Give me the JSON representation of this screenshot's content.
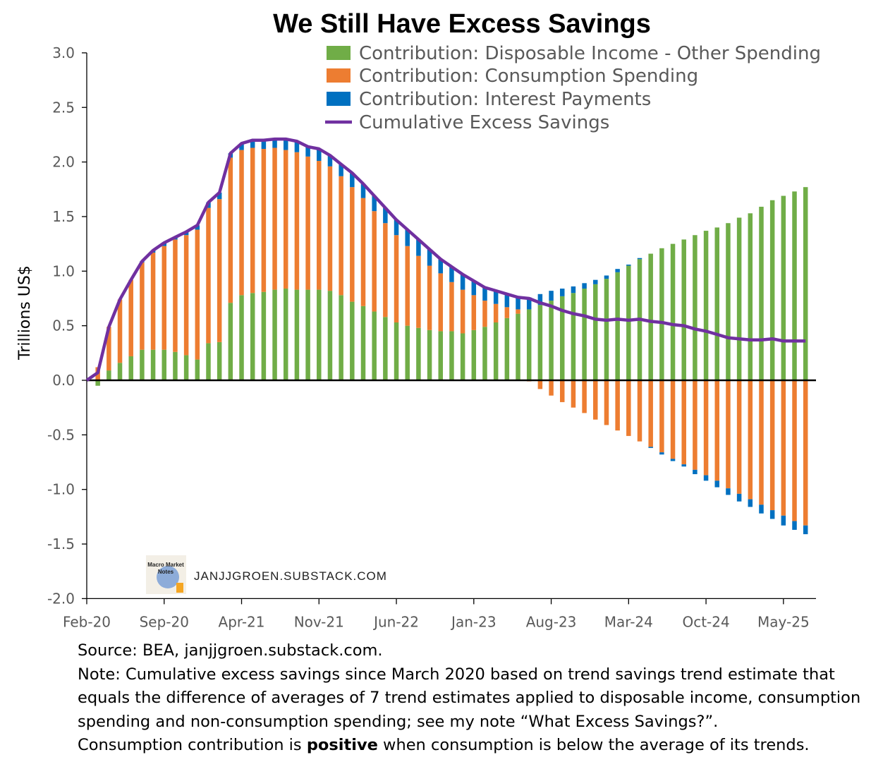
{
  "chart_data": {
    "type": "bar",
    "title": "We Still Have Excess Savings",
    "ylabel": "Trillions US$",
    "xlabel": "",
    "ylim": [
      -2.0,
      3.0
    ],
    "yticks": [
      "3.0",
      "2.5",
      "2.0",
      "1.5",
      "1.0",
      "0.5",
      "0.0",
      "-0.5",
      "-1.0",
      "-1.5",
      "-2.0"
    ],
    "ytick_values": [
      3.0,
      2.5,
      2.0,
      1.5,
      1.0,
      0.5,
      0.0,
      -0.5,
      -1.0,
      -1.5,
      -2.0
    ],
    "xticks": [
      "Feb-20",
      "Sep-20",
      "Apr-21",
      "Nov-21",
      "Jun-22",
      "Jan-23",
      "Aug-23",
      "Mar-24",
      "Oct-24",
      "May-25"
    ],
    "xtick_month_index": [
      0,
      7,
      14,
      21,
      28,
      35,
      42,
      49,
      56,
      63
    ],
    "grid": false,
    "stacked": true,
    "legend_position": "top-right",
    "bar_start": "Mar-20",
    "bar_end": "Jul-25",
    "series": [
      {
        "name": "Contribution: Disposable Income - Other Spending",
        "kind": "bar",
        "color": "#70AD47",
        "values": [
          -0.05,
          0.09,
          0.16,
          0.22,
          0.28,
          0.28,
          0.28,
          0.26,
          0.23,
          0.19,
          0.34,
          0.35,
          0.71,
          0.78,
          0.8,
          0.81,
          0.83,
          0.84,
          0.83,
          0.83,
          0.83,
          0.82,
          0.78,
          0.72,
          0.68,
          0.63,
          0.58,
          0.53,
          0.5,
          0.48,
          0.46,
          0.45,
          0.45,
          0.43,
          0.46,
          0.49,
          0.53,
          0.57,
          0.61,
          0.65,
          0.69,
          0.73,
          0.77,
          0.8,
          0.84,
          0.88,
          0.93,
          0.99,
          1.05,
          1.11,
          1.16,
          1.21,
          1.25,
          1.29,
          1.33,
          1.37,
          1.4,
          1.44,
          1.49,
          1.53,
          1.59,
          1.65,
          1.69,
          1.73,
          1.77
        ]
      },
      {
        "name": "Contribution: Consumption Spending",
        "kind": "bar",
        "color": "#ED7D31",
        "values": [
          0.12,
          0.4,
          0.58,
          0.7,
          0.8,
          0.89,
          0.95,
          1.03,
          1.1,
          1.19,
          1.24,
          1.31,
          1.33,
          1.33,
          1.33,
          1.31,
          1.3,
          1.27,
          1.26,
          1.22,
          1.18,
          1.14,
          1.09,
          1.05,
          0.99,
          0.92,
          0.86,
          0.8,
          0.73,
          0.66,
          0.59,
          0.53,
          0.45,
          0.4,
          0.32,
          0.24,
          0.17,
          0.1,
          0.04,
          -0.01,
          -0.08,
          -0.14,
          -0.2,
          -0.25,
          -0.3,
          -0.36,
          -0.41,
          -0.46,
          -0.51,
          -0.56,
          -0.61,
          -0.66,
          -0.72,
          -0.77,
          -0.82,
          -0.87,
          -0.92,
          -0.99,
          -1.04,
          -1.09,
          -1.14,
          -1.19,
          -1.24,
          -1.29,
          -1.33
        ]
      },
      {
        "name": "Contribution: Interest Payments",
        "kind": "bar",
        "color": "#0070C0",
        "values": [
          0,
          0,
          0,
          0,
          0.01,
          0.02,
          0.03,
          0.02,
          0.03,
          0.04,
          0.05,
          0.06,
          0.04,
          0.06,
          0.07,
          0.08,
          0.08,
          0.1,
          0.1,
          0.09,
          0.11,
          0.1,
          0.11,
          0.13,
          0.13,
          0.14,
          0.14,
          0.14,
          0.15,
          0.15,
          0.15,
          0.13,
          0.14,
          0.14,
          0.13,
          0.12,
          0.12,
          0.12,
          0.11,
          0.11,
          0.1,
          0.09,
          0.07,
          0.06,
          0.05,
          0.04,
          0.03,
          0.03,
          0.01,
          0.01,
          -0.01,
          -0.02,
          -0.02,
          -0.02,
          -0.04,
          -0.05,
          -0.06,
          -0.06,
          -0.07,
          -0.07,
          -0.08,
          -0.08,
          -0.09,
          -0.08,
          -0.08
        ]
      },
      {
        "name": "Cumulative Excess Savings",
        "kind": "line",
        "color": "#7030A0",
        "start": "Feb-20",
        "values": [
          0,
          0.07,
          0.49,
          0.74,
          0.92,
          1.09,
          1.19,
          1.26,
          1.31,
          1.36,
          1.42,
          1.63,
          1.72,
          2.08,
          2.17,
          2.2,
          2.2,
          2.21,
          2.21,
          2.19,
          2.14,
          2.12,
          2.06,
          1.98,
          1.9,
          1.8,
          1.69,
          1.58,
          1.47,
          1.38,
          1.29,
          1.2,
          1.11,
          1.04,
          0.97,
          0.91,
          0.85,
          0.82,
          0.79,
          0.76,
          0.75,
          0.71,
          0.68,
          0.64,
          0.61,
          0.59,
          0.56,
          0.55,
          0.56,
          0.55,
          0.56,
          0.54,
          0.53,
          0.51,
          0.5,
          0.47,
          0.45,
          0.42,
          0.39,
          0.38,
          0.37,
          0.37,
          0.38,
          0.36,
          0.36,
          0.36
        ]
      }
    ],
    "watermark": "JANJJGROEN.SUBSTACK.COM",
    "logo_text": "Macro Market Notes"
  },
  "footer": {
    "source": "Source: BEA, janjjgroen.substack.com.",
    "note_lines": [
      "Note: Cumulative excess savings since March 2020 based on trend savings trend estimate that",
      "equals the difference of averages of 7 trend estimates applied to disposable income, consumption",
      "spending and non-consumption spending; see my note “What Excess Savings?”."
    ],
    "last_line_pre": "Consumption contribution is ",
    "last_line_bold": "positive",
    "last_line_post": " when consumption is below the average of its trends."
  }
}
